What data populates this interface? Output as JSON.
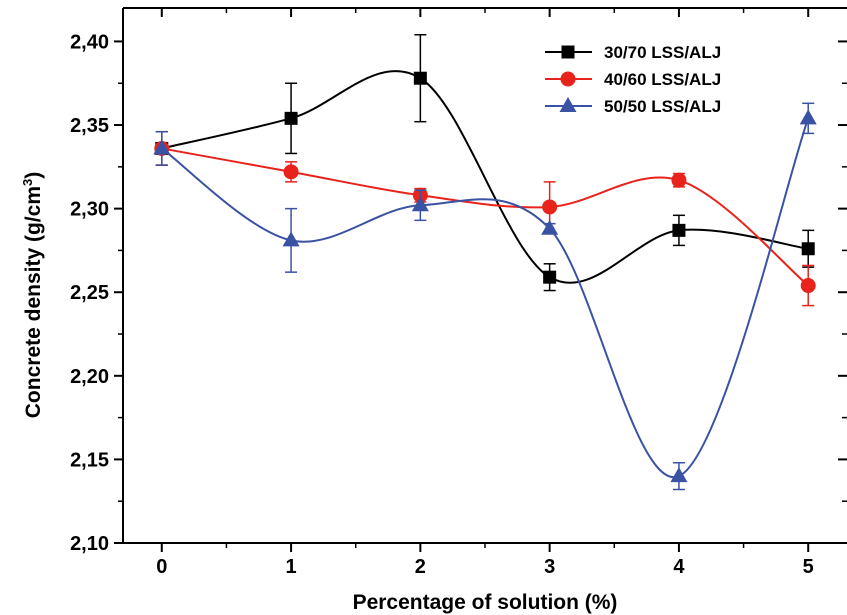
{
  "chart_data": {
    "type": "line",
    "title": "",
    "xlabel": "Percentage of solution (%)",
    "ylabel_main": "Concrete density (g/cm",
    "ylabel_sup": "3",
    "ylabel_close": ")",
    "xlim": [
      -0.3,
      5.3
    ],
    "ylim": [
      2.1,
      2.42
    ],
    "x_ticks": [
      0,
      1,
      2,
      3,
      4,
      5
    ],
    "x_tick_labels": [
      "0",
      "1",
      "2",
      "3",
      "4",
      "5"
    ],
    "y_ticks": [
      2.1,
      2.15,
      2.2,
      2.25,
      2.3,
      2.35,
      2.4
    ],
    "y_tick_labels": [
      "2,10",
      "2,15",
      "2,20",
      "2,25",
      "2,30",
      "2,35",
      "2,40"
    ],
    "grid": false,
    "legend_position": "top-right",
    "curve": "smooth spline",
    "series": [
      {
        "name": "30/70 LSS/ALJ",
        "color": "#000000",
        "marker": "square",
        "x": [
          0,
          1,
          2,
          3,
          4,
          5
        ],
        "y": [
          2.336,
          2.354,
          2.378,
          2.259,
          2.287,
          2.276
        ],
        "error": [
          0.01,
          0.021,
          0.026,
          0.008,
          0.009,
          0.011
        ]
      },
      {
        "name": "40/60 LSS/ALJ",
        "color": "#e8231b",
        "marker": "circle",
        "x": [
          0,
          1,
          2,
          3,
          4,
          5
        ],
        "y": [
          2.336,
          2.322,
          2.308,
          2.301,
          2.317,
          2.254
        ],
        "error": [
          0.01,
          0.006,
          0.004,
          0.015,
          0.004,
          0.012
        ]
      },
      {
        "name": "50/50 LSS/ALJ",
        "color": "#3a52a4",
        "marker": "triangle",
        "x": [
          0,
          1,
          2,
          3,
          4,
          5
        ],
        "y": [
          2.336,
          2.281,
          2.302,
          2.288,
          2.14,
          2.354
        ],
        "error": [
          0.01,
          0.019,
          0.009,
          0.003,
          0.008,
          0.009
        ]
      }
    ]
  }
}
